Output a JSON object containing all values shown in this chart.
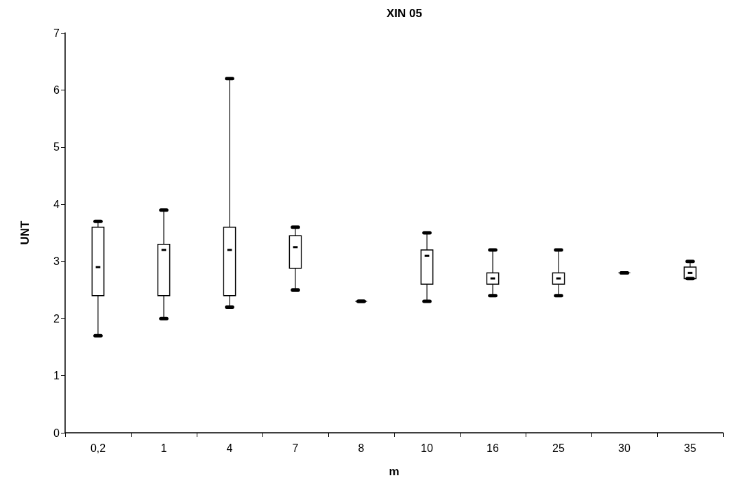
{
  "chart_data": {
    "type": "box",
    "title": "XIN 05",
    "xlabel": "m",
    "ylabel": "UNT",
    "categories": [
      "0,2",
      "1",
      "4",
      "7",
      "8",
      "10",
      "16",
      "25",
      "30",
      "35"
    ],
    "boxes": [
      {
        "low": 1.7,
        "q1": 2.4,
        "median": 2.9,
        "q3": 3.6,
        "high": 3.7
      },
      {
        "low": 2.0,
        "q1": 2.4,
        "median": 3.2,
        "q3": 3.3,
        "high": 3.9
      },
      {
        "low": 2.2,
        "q1": 2.4,
        "median": 3.2,
        "q3": 3.6,
        "high": 6.2
      },
      {
        "low": 2.5,
        "q1": 2.88,
        "median": 3.25,
        "q3": 3.45,
        "high": 3.6
      },
      {
        "low": 2.3,
        "q1": 2.3,
        "median": 2.3,
        "q3": 2.3,
        "high": 2.3
      },
      {
        "low": 2.3,
        "q1": 2.6,
        "median": 3.1,
        "q3": 3.2,
        "high": 3.5
      },
      {
        "low": 2.4,
        "q1": 2.6,
        "median": 2.7,
        "q3": 2.8,
        "high": 3.2
      },
      {
        "low": 2.4,
        "q1": 2.6,
        "median": 2.7,
        "q3": 2.8,
        "high": 3.2
      },
      {
        "low": 2.8,
        "q1": 2.8,
        "median": 2.8,
        "q3": 2.8,
        "high": 2.8
      },
      {
        "low": 2.7,
        "q1": 2.7,
        "median": 2.8,
        "q3": 2.9,
        "high": 3.0
      }
    ],
    "ylim": [
      0,
      7
    ],
    "yticks": [
      0,
      1,
      2,
      3,
      4,
      5,
      6,
      7
    ],
    "grid": false
  }
}
